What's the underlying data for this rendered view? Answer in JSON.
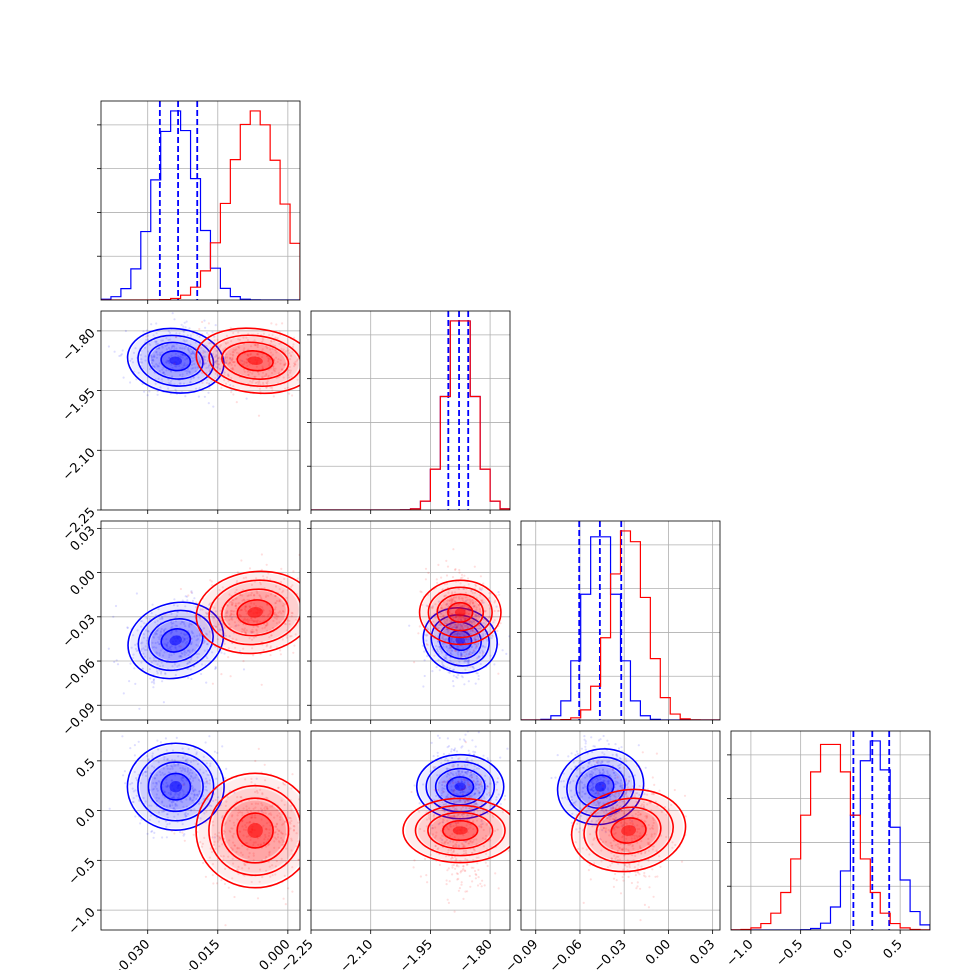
{
  "chart_data": {
    "type": "corner",
    "parameters": 4,
    "colors": {
      "series_a": "#0000ff",
      "series_b": "#ff0000"
    },
    "grid": true,
    "legend": "none",
    "axis_ranges": [
      [
        -0.04,
        0.0026
      ],
      [
        -2.25,
        -1.75
      ],
      [
        -0.1,
        0.035
      ],
      [
        -1.2,
        0.8
      ]
    ],
    "tick_values": [
      [
        -0.03,
        -0.015,
        0.0
      ],
      [
        -2.25,
        -2.1,
        -1.95,
        -1.8
      ],
      [
        -0.09,
        -0.06,
        -0.03,
        0.0,
        0.03
      ],
      [
        -1.0,
        -0.5,
        0.0,
        0.5
      ]
    ],
    "tick_labels": [
      [
        "−0.030",
        "−0.015",
        "0.000"
      ],
      [
        "−2.25",
        "−2.10",
        "−1.95",
        "−1.80"
      ],
      [
        "−0.09",
        "−0.06",
        "−0.03",
        "0.00",
        "0.03"
      ],
      [
        "−1.0",
        "−0.5",
        "0.0",
        "0.5"
      ]
    ],
    "series": [
      {
        "color": "#0000ff",
        "mean": [
          -0.024,
          -1.875,
          -0.046,
          0.24
        ],
        "sd": [
          0.0045,
          0.035,
          0.011,
          0.19
        ],
        "rho": {
          "0-1": -0.1,
          "0-2": 0.15,
          "0-3": 0.0,
          "1-2": 0.1,
          "1-3": 0.0,
          "2-3": -0.1
        },
        "quantiles": [
          [
            -0.0274,
            -0.0235,
            -0.0194
          ],
          [
            -1.905,
            -1.878,
            -1.855
          ],
          [
            -0.0605,
            -0.0465,
            -0.032
          ],
          [
            0.03,
            0.22,
            0.39
          ]
        ]
      },
      {
        "color": "#ff0000",
        "mean": [
          -0.007,
          -1.875,
          -0.027,
          -0.2
        ],
        "sd": [
          0.0055,
          0.035,
          0.012,
          0.25
        ],
        "rho": {
          "0-1": -0.15,
          "0-2": 0.1,
          "0-3": 0.0,
          "1-2": 0.0,
          "1-3": 0.0,
          "2-3": -0.1
        },
        "quantiles": null
      }
    ]
  }
}
